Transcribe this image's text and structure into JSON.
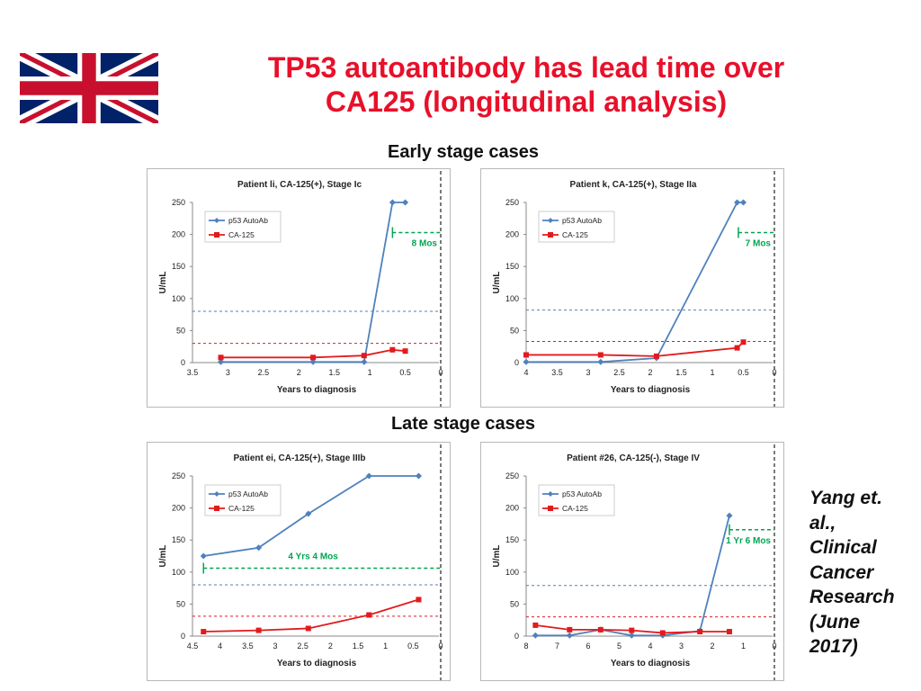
{
  "title_line1": "TP53 autoantibody has lead time over",
  "title_line2": "CA125 (longitudinal analysis)",
  "section_early": "Early stage cases",
  "section_late": "Late stage cases",
  "reference_lines": [
    "Yang et.",
    "al.,",
    "Clinical",
    "Cancer",
    "Research",
    "(June",
    "2017)"
  ],
  "colors": {
    "title": "#e8102a",
    "p53": "#4f81bd",
    "ca125": "#e31a1c",
    "lead": "#00a550",
    "flag_blue": "#012169",
    "flag_red": "#c8102e"
  },
  "chart_data": [
    {
      "type": "line",
      "title": "Patient li, CA-125(+), Stage Ic",
      "xlabel": "Years to diagnosis",
      "ylabel": "U/mL",
      "xlim": [
        3.5,
        0
      ],
      "ylim": [
        0,
        250
      ],
      "xticks": [
        "3.5",
        "3",
        "2.5",
        "2",
        "1.5",
        "1",
        "0.5",
        "0"
      ],
      "xtick_values": [
        3.5,
        3,
        2.5,
        2,
        1.5,
        1,
        0.5,
        0
      ],
      "yticks": [
        "0",
        "50",
        "100",
        "150",
        "200",
        "250"
      ],
      "ytick_values": [
        0,
        50,
        100,
        150,
        200,
        250
      ],
      "legend": [
        "p53 AutoAb",
        "CA-125"
      ],
      "series": [
        {
          "name": "p53 AutoAb",
          "x": [
            3.1,
            1.8,
            1.08,
            0.68,
            0.5
          ],
          "y": [
            1,
            1,
            1,
            250,
            250
          ]
        },
        {
          "name": "CA-125",
          "x": [
            3.1,
            1.8,
            1.08,
            0.68,
            0.5
          ],
          "y": [
            8,
            8,
            11,
            20,
            18
          ]
        }
      ],
      "cutoffs": {
        "p53": 80,
        "ca125": 30
      },
      "lead_time": {
        "label": "8 Mos",
        "from_x": 0.68,
        "to_x": 0,
        "y": 203
      }
    },
    {
      "type": "line",
      "title": "Patient k, CA-125(+), Stage IIa",
      "xlabel": "Years to diagnosis",
      "ylabel": "U/mL",
      "xlim": [
        4,
        0
      ],
      "ylim": [
        0,
        250
      ],
      "xticks": [
        "4",
        "3.5",
        "3",
        "2.5",
        "2",
        "1.5",
        "1",
        "0.5",
        "0"
      ],
      "xtick_values": [
        4,
        3.5,
        3,
        2.5,
        2,
        1.5,
        1,
        0.5,
        0
      ],
      "yticks": [
        "0",
        "50",
        "100",
        "150",
        "200",
        "250"
      ],
      "ytick_values": [
        0,
        50,
        100,
        150,
        200,
        250
      ],
      "legend": [
        "p53 AutoAb",
        "CA-125"
      ],
      "series": [
        {
          "name": "p53 AutoAb",
          "x": [
            4.0,
            2.8,
            1.9,
            0.6,
            0.5
          ],
          "y": [
            1,
            1,
            7,
            250,
            250
          ]
        },
        {
          "name": "CA-125",
          "x": [
            4.0,
            2.8,
            1.9,
            0.6,
            0.5
          ],
          "y": [
            12,
            12,
            10,
            23,
            32
          ]
        }
      ],
      "cutoffs": {
        "p53": 82,
        "ca125": 33
      },
      "lead_time": {
        "label": "7 Mos",
        "from_x": 0.58,
        "to_x": 0,
        "y": 203
      }
    },
    {
      "type": "line",
      "title": "Patient ei, CA-125(+), Stage IIIb",
      "xlabel": "Years to diagnosis",
      "ylabel": "U/mL",
      "xlim": [
        4.5,
        0
      ],
      "ylim": [
        0,
        250
      ],
      "xticks": [
        "4.5",
        "4",
        "3.5",
        "3",
        "2.5",
        "2",
        "1.5",
        "1",
        "0.5",
        "0"
      ],
      "xtick_values": [
        4.5,
        4,
        3.5,
        3,
        2.5,
        2,
        1.5,
        1,
        0.5,
        0
      ],
      "yticks": [
        "0",
        "50",
        "100",
        "150",
        "200",
        "250"
      ],
      "ytick_values": [
        0,
        50,
        100,
        150,
        200,
        250
      ],
      "legend": [
        "p53 AutoAb",
        "CA-125"
      ],
      "series": [
        {
          "name": "p53 AutoAb",
          "x": [
            4.3,
            3.3,
            2.4,
            1.3,
            0.4
          ],
          "y": [
            125,
            138,
            191,
            250,
            250
          ]
        },
        {
          "name": "CA-125",
          "x": [
            4.3,
            3.3,
            2.4,
            1.3,
            0.4
          ],
          "y": [
            7,
            9,
            12,
            33,
            57
          ]
        }
      ],
      "cutoffs": {
        "p53": 80,
        "ca125": 31
      },
      "lead_time": {
        "label": "4 Yrs 4 Mos",
        "from_x": 4.3,
        "to_x": 0,
        "y": 106
      }
    },
    {
      "type": "line",
      "title": "Patient #26, CA-125(-), Stage IV",
      "xlabel": "Years to diagnosis",
      "ylabel": "U/mL",
      "xlim": [
        8,
        0
      ],
      "ylim": [
        0,
        250
      ],
      "xticks": [
        "8",
        "7",
        "6",
        "5",
        "4",
        "3",
        "2",
        "1",
        "0"
      ],
      "xtick_values": [
        8,
        7,
        6,
        5,
        4,
        3,
        2,
        1,
        0
      ],
      "yticks": [
        "0",
        "50",
        "100",
        "150",
        "200",
        "250"
      ],
      "ytick_values": [
        0,
        50,
        100,
        150,
        200,
        250
      ],
      "legend": [
        "p53 AutoAb",
        "CA-125"
      ],
      "series": [
        {
          "name": "p53 AutoAb",
          "x": [
            7.7,
            6.6,
            5.6,
            4.6,
            3.6,
            2.4,
            1.45
          ],
          "y": [
            1,
            1,
            10,
            1,
            1,
            8,
            188
          ]
        },
        {
          "name": "CA-125",
          "x": [
            7.7,
            6.6,
            5.6,
            4.6,
            3.6,
            2.4,
            1.45
          ],
          "y": [
            17,
            10,
            10,
            9,
            5,
            7,
            7
          ]
        }
      ],
      "cutoffs": {
        "p53": 79,
        "ca125": 30
      },
      "lead_time": {
        "label": "1 Yr 6 Mos",
        "from_x": 1.45,
        "to_x": 0,
        "y": 166
      }
    }
  ]
}
